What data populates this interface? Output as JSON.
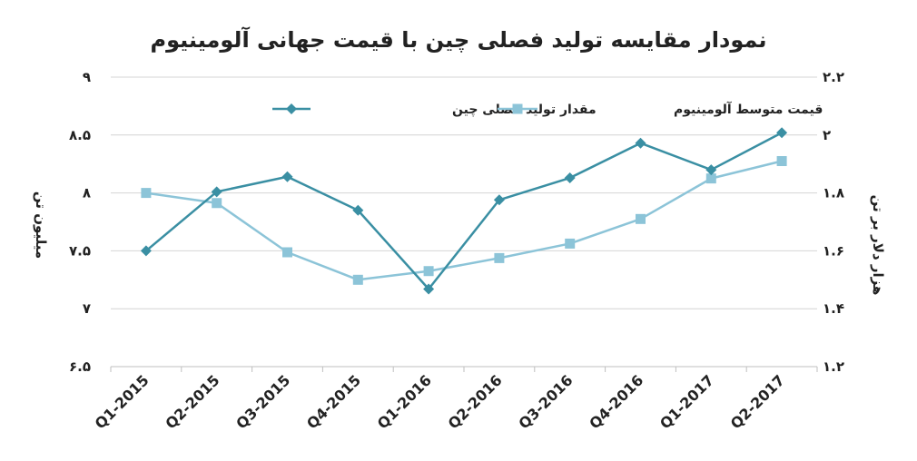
{
  "chart_data": {
    "type": "line",
    "title": "نمودار مقایسه تولید فصلی چین با قیمت جهانی آلومینیوم",
    "categories": [
      "Q1-2015",
      "Q2-2015",
      "Q3-2015",
      "Q4-2015",
      "Q1-2016",
      "Q2-2016",
      "Q3-2016",
      "Q4-2016",
      "Q1-2017",
      "Q2-2017"
    ],
    "y_left": {
      "label": "میلیون تن",
      "ticks": [
        "۶.۵",
        "۷",
        "۷.۵",
        "۸",
        "۸.۵",
        "۹"
      ],
      "ylim": [
        6.5,
        9
      ]
    },
    "y_right": {
      "label": "هزار دلار بر تن",
      "ticks": [
        "۱.۲",
        "۱.۴",
        "۱.۶",
        "۱.۸",
        "۲",
        "۲.۲"
      ],
      "ylim": [
        1.2,
        2.2
      ]
    },
    "series": [
      {
        "name": "مقدار تولید فصلی چین",
        "axis": "left",
        "marker": "diamond",
        "color": "#3a8fa3",
        "values": [
          7.5,
          8.01,
          8.14,
          7.85,
          7.17,
          7.94,
          8.13,
          8.43,
          8.2,
          8.52
        ]
      },
      {
        "name": "قیمت متوسط آلومینیوم",
        "axis": "right",
        "marker": "square",
        "color": "#8cc4d8",
        "values": [
          1.8,
          1.765,
          1.595,
          1.5,
          1.53,
          1.575,
          1.625,
          1.71,
          1.85,
          1.91
        ]
      }
    ],
    "legend_position": "top"
  }
}
